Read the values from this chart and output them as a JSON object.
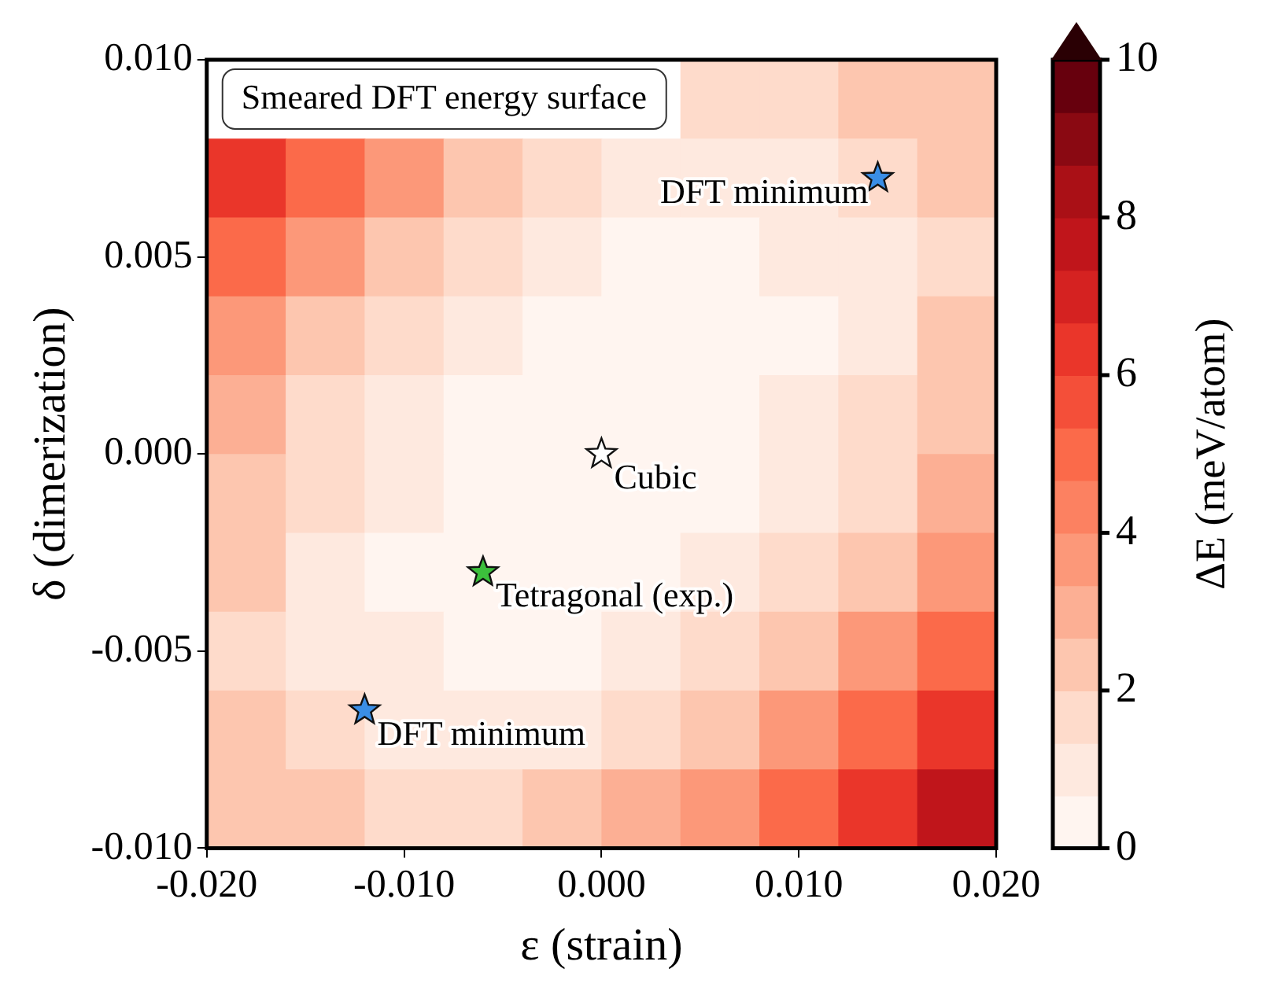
{
  "chart_data": [
    {
      "type": "heatmap",
      "clabel": "ΔE (meV/atom)",
      "tick_labels": false,
      "categories": [
        null,
        null,
        null,
        null,
        null,
        null,
        null,
        null,
        null,
        null
      ],
      "y_categories": [
        null,
        null,
        null,
        null,
        null,
        null,
        null,
        null,
        null,
        null
      ],
      "clim": [
        0,
        10
      ],
      "cticks": [
        0,
        2,
        4,
        6,
        8,
        10
      ],
      "cells": [
        [
          null,
          null,
          null,
          null,
          null,
          null,
          1.9,
          1.8,
          2.0,
          2.4
        ],
        [
          6.1,
          4.7,
          3.4,
          2.4,
          1.7,
          1.3,
          1.1,
          1.2,
          1.5,
          2.1
        ],
        [
          4.8,
          3.5,
          2.4,
          1.5,
          0.9,
          0.6,
          0.6,
          0.8,
          1.2,
          1.9
        ],
        [
          3.8,
          2.5,
          1.6,
          0.9,
          0.4,
          0.2,
          0.3,
          0.6,
          1.2,
          2.0
        ],
        [
          2.9,
          1.9,
          1.0,
          0.4,
          0.1,
          0.0,
          0.2,
          0.7,
          1.4,
          2.4
        ],
        [
          2.4,
          1.4,
          0.7,
          0.2,
          0.0,
          0.1,
          0.4,
          1.0,
          1.9,
          2.9
        ],
        [
          2.0,
          1.2,
          0.6,
          0.3,
          0.2,
          0.4,
          0.9,
          1.6,
          2.5,
          3.8
        ],
        [
          1.9,
          1.2,
          0.8,
          0.6,
          0.6,
          0.9,
          1.5,
          2.4,
          3.5,
          4.8
        ],
        [
          2.1,
          1.5,
          1.2,
          1.1,
          1.3,
          1.7,
          2.4,
          3.4,
          4.7,
          6.1
        ],
        [
          2.4,
          2.0,
          1.8,
          1.9,
          2.2,
          2.8,
          3.6,
          4.7,
          6.1,
          7.7
        ]
      ]
    },
    {
      "type": "scatter",
      "xlabel": "ε (strain)",
      "ylabel": "δ (dimerization)",
      "xlim": [
        -0.02,
        0.02
      ],
      "xticks": [
        {
          "value": -0.02,
          "label": "-0.020"
        },
        {
          "value": -0.01,
          "label": "-0.010"
        },
        {
          "value": 0,
          "label": "0.000"
        },
        {
          "value": 0.01,
          "label": "0.010"
        },
        {
          "value": 0.02,
          "label": "0.020"
        }
      ],
      "ylim": [
        -0.01,
        0.01
      ],
      "yticks": [
        {
          "value": -0.01,
          "label": "-0.010"
        },
        {
          "value": -0.005,
          "label": "-0.005"
        },
        {
          "value": 0,
          "label": "0.000"
        },
        {
          "value": 0.005,
          "label": "0.005"
        },
        {
          "value": 0.01,
          "label": "0.010"
        }
      ],
      "series": [
        {
          "type": "scatter",
          "marker": "star",
          "x": [
            0.014,
            0,
            -0.006,
            -0.012
          ],
          "values": [
            0.007,
            0,
            -0.003,
            -0.0065
          ],
          "colors": [
            "#3a8ee6",
            "#ffffff",
            "#3cc03c",
            "#3a8ee6"
          ]
        }
      ],
      "annotations": [
        "Smeared DFT energy surface",
        {
          "text": "DFT minimum",
          "x": 0.014,
          "y": 0.007
        },
        {
          "text": "Cubic",
          "x": 0,
          "y": 0
        },
        {
          "text": "Tetragonal (exp.)",
          "x": -0.006,
          "y": -0.003
        },
        {
          "text": "DFT minimum",
          "x": -0.012,
          "y": -0.0065
        }
      ]
    }
  ]
}
